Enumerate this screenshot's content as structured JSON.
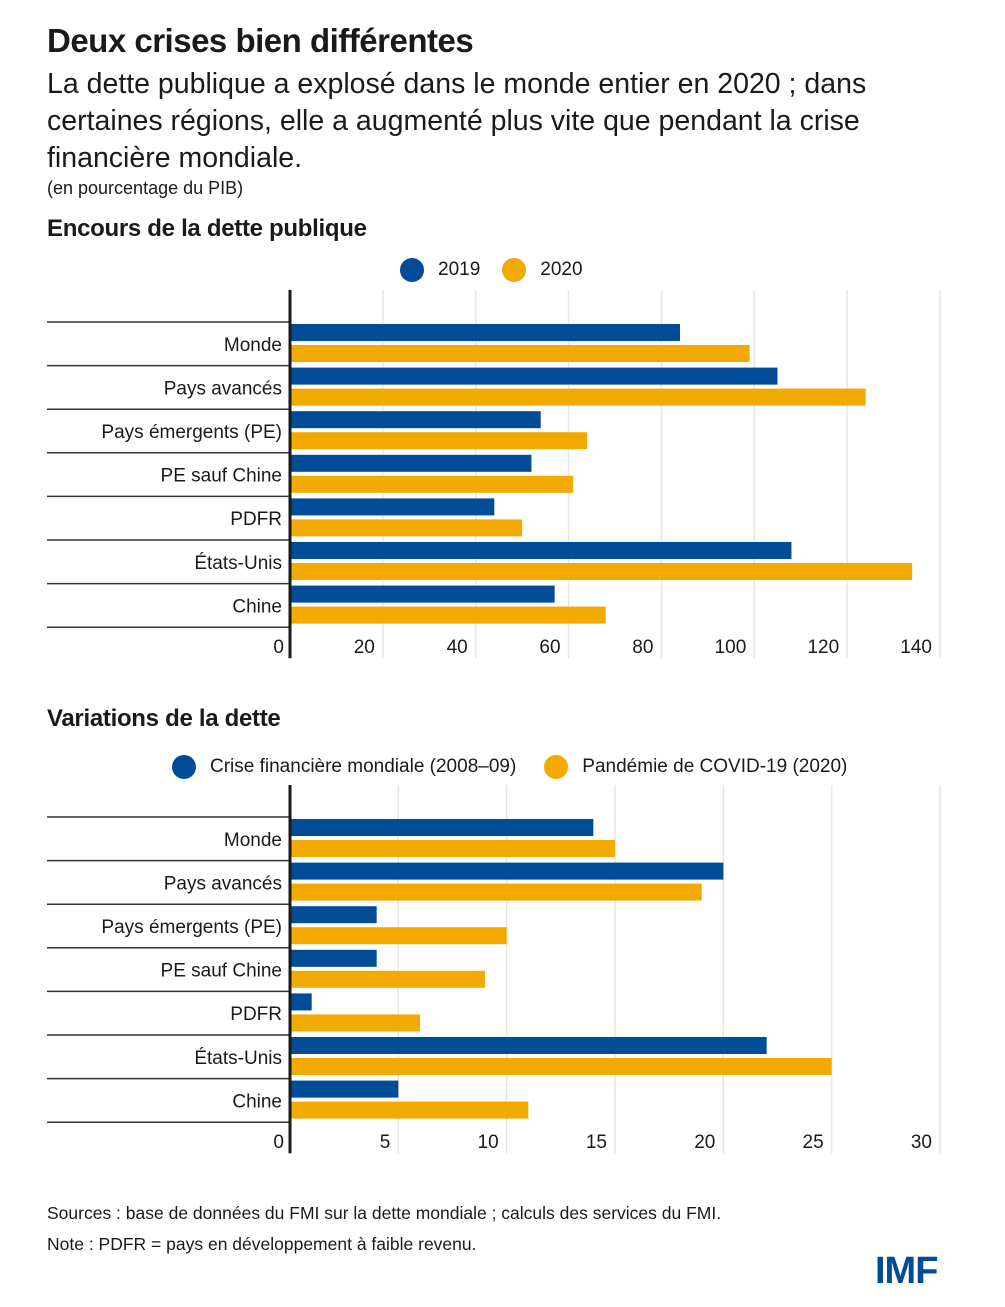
{
  "header": {
    "title": "Deux crises bien différentes",
    "subtitle": "La dette publique a explosé dans le monde entier en 2020 ; dans certaines régions, elle a augmenté plus vite que pendant la crise financière mondiale.",
    "units": "(en pourcentage du PIB)"
  },
  "colors": {
    "blue": "#004C97",
    "gold": "#F2A900",
    "grid": "#e6e6e6",
    "axis": "#1a1a1a",
    "logo": "#004C97"
  },
  "chart_data": [
    {
      "type": "bar",
      "orientation": "horizontal",
      "title": "Encours de la dette publique",
      "xlabel": "",
      "ylabel": "",
      "categories": [
        "Monde",
        "Pays avancés",
        "Pays émergents (PE)",
        "PE sauf Chine",
        "PDFR",
        "États-Unis",
        "Chine"
      ],
      "series": [
        {
          "name": "2019",
          "color": "#004C97",
          "values": [
            84,
            105,
            54,
            52,
            44,
            108,
            57
          ]
        },
        {
          "name": "2020",
          "color": "#F2A900",
          "values": [
            99,
            124,
            64,
            61,
            50,
            134,
            68
          ]
        }
      ],
      "xlim": [
        0,
        140
      ],
      "xticks": [
        0,
        20,
        40,
        60,
        80,
        100,
        120,
        140
      ],
      "grid": true,
      "legend": "top-center"
    },
    {
      "type": "bar",
      "orientation": "horizontal",
      "title": "Variations de la dette",
      "xlabel": "",
      "ylabel": "",
      "categories": [
        "Monde",
        "Pays avancés",
        "Pays émergents (PE)",
        "PE sauf Chine",
        "PDFR",
        "États-Unis",
        "Chine"
      ],
      "series": [
        {
          "name": "Crise financière mondiale (2008–09)",
          "color": "#004C97",
          "values": [
            14,
            20,
            4,
            4,
            1,
            22,
            5
          ]
        },
        {
          "name": "Pandémie de COVID-19 (2020)",
          "color": "#F2A900",
          "values": [
            15,
            19,
            10,
            9,
            6,
            25,
            11
          ]
        }
      ],
      "xlim": [
        0,
        30
      ],
      "xticks": [
        0,
        5,
        10,
        15,
        20,
        25,
        30
      ],
      "grid": true,
      "legend": "top-center"
    }
  ],
  "footer": {
    "sources": "Sources : base de données du FMI sur la dette mondiale ; calculs des services du FMI.",
    "note": "Note : PDFR = pays en développement à faible revenu.",
    "logo": "IMF"
  }
}
